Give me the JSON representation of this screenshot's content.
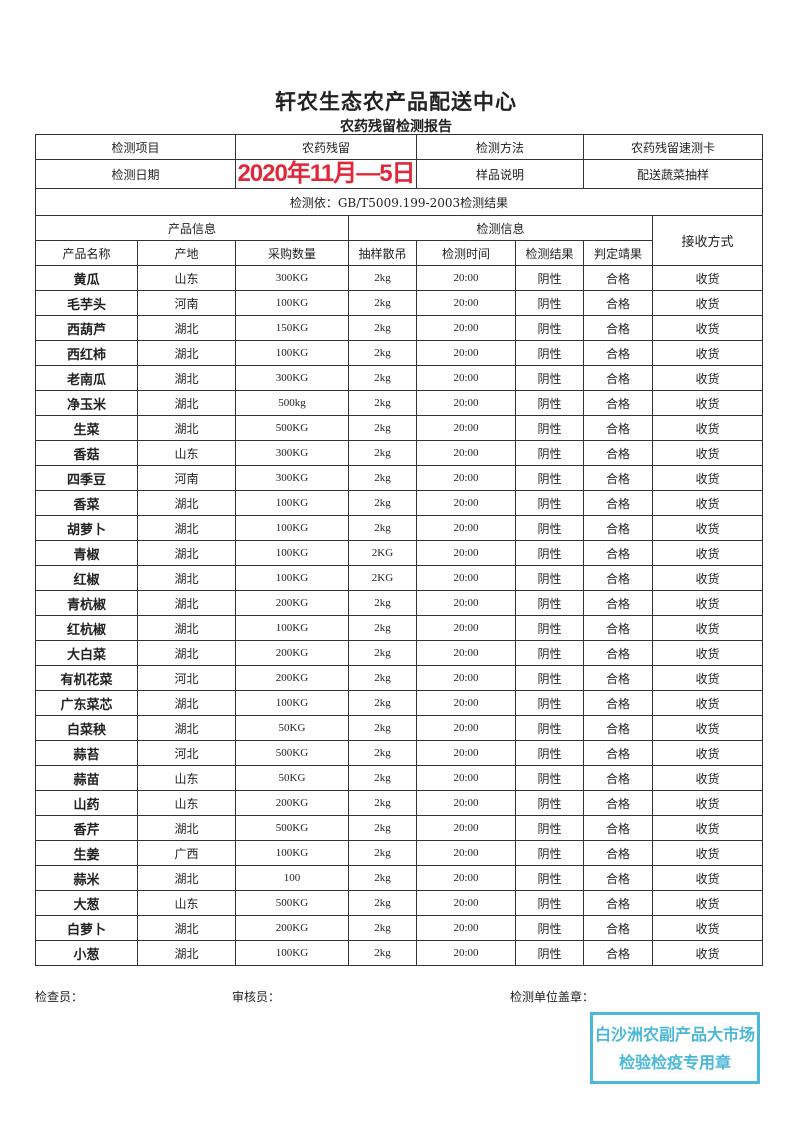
{
  "header": {
    "title": "轩农生态农产品配送中心",
    "subtitle": "农药残留检测报告"
  },
  "info": {
    "item_label": "检测项目",
    "item_value": "农药残留",
    "method_label": "检测方法",
    "method_value": "农药残留速测卡",
    "date_label": "检测日期",
    "date_value": "2020年11月—5日",
    "sample_label": "样品说明",
    "sample_value": "配送蔬菜抽样",
    "basis": "检测依：GB/T5009.199-2003检测结果"
  },
  "groups": {
    "product": "产品信息",
    "test": "检测信息",
    "receive": "接收方式"
  },
  "columns": [
    "产品名称",
    "产地",
    "采购数量",
    "抽样散吊",
    "检测时间",
    "检测结果",
    "判定靖果"
  ],
  "rows": [
    [
      "黄瓜",
      "山东",
      "300KG",
      "2kg",
      "20:00",
      "阴性",
      "合格",
      "收货"
    ],
    [
      "毛芋头",
      "河南",
      "100KG",
      "2kg",
      "20:00",
      "阴性",
      "合格",
      "收货"
    ],
    [
      "西葫芦",
      "湖北",
      "150KG",
      "2kg",
      "20:00",
      "阴性",
      "合格",
      "收货"
    ],
    [
      "西红柿",
      "湖北",
      "100KG",
      "2kg",
      "20:00",
      "阴性",
      "合格",
      "收货"
    ],
    [
      "老南瓜",
      "湖北",
      "300KG",
      "2kg",
      "20:00",
      "阴性",
      "合格",
      "收货"
    ],
    [
      "净玉米",
      "湖北",
      "500kg",
      "2kg",
      "20:00",
      "阴性",
      "合格",
      "收货"
    ],
    [
      "生菜",
      "湖北",
      "500KG",
      "2kg",
      "20:00",
      "阴性",
      "合格",
      "收货"
    ],
    [
      "香菇",
      "山东",
      "300KG",
      "2kg",
      "20:00",
      "阴性",
      "合格",
      "收货"
    ],
    [
      "四季豆",
      "河南",
      "300KG",
      "2kg",
      "20:00",
      "阴性",
      "合格",
      "收货"
    ],
    [
      "香菜",
      "湖北",
      "100KG",
      "2kg",
      "20:00",
      "阴性",
      "合格",
      "收货"
    ],
    [
      "胡萝卜",
      "湖北",
      "100KG",
      "2kg",
      "20:00",
      "阴性",
      "合格",
      "收货"
    ],
    [
      "青椒",
      "湖北",
      "100KG",
      "2KG",
      "20:00",
      "阴性",
      "合格",
      "收货"
    ],
    [
      "红椒",
      "湖北",
      "100KG",
      "2KG",
      "20:00",
      "阴性",
      "合格",
      "收货"
    ],
    [
      "青杭椒",
      "湖北",
      "200KG",
      "2kg",
      "20:00",
      "阴性",
      "合格",
      "收货"
    ],
    [
      "红杭椒",
      "湖北",
      "100KG",
      "2kg",
      "20:00",
      "阴性",
      "合格",
      "收货"
    ],
    [
      "大白菜",
      "湖北",
      "200KG",
      "2kg",
      "20:00",
      "阴性",
      "合格",
      "收货"
    ],
    [
      "有机花菜",
      "河北",
      "200KG",
      "2kg",
      "20:00",
      "阴性",
      "合格",
      "收货"
    ],
    [
      "广东菜芯",
      "湖北",
      "100KG",
      "2kg",
      "20:00",
      "阴性",
      "合格",
      "收货"
    ],
    [
      "白菜秧",
      "湖北",
      "50KG",
      "2kg",
      "20:00",
      "阴性",
      "合格",
      "收货"
    ],
    [
      "蒜苔",
      "河北",
      "500KG",
      "2kg",
      "20:00",
      "阴性",
      "合格",
      "收货"
    ],
    [
      "蒜苗",
      "山东",
      "50KG",
      "2kg",
      "20:00",
      "阴性",
      "合格",
      "收货"
    ],
    [
      "山药",
      "山东",
      "200KG",
      "2kg",
      "20:00",
      "阴性",
      "合格",
      "收货"
    ],
    [
      "香芹",
      "湖北",
      "500KG",
      "2kg",
      "20:00",
      "阴性",
      "合格",
      "收货"
    ],
    [
      "生姜",
      "广西",
      "100KG",
      "2kg",
      "20:00",
      "阴性",
      "合格",
      "收货"
    ],
    [
      "蒜米",
      "湖北",
      "100",
      "2kg",
      "20:00",
      "阴性",
      "合格",
      "收货"
    ],
    [
      "大葱",
      "山东",
      "500KG",
      "2kg",
      "20:00",
      "阴性",
      "合格",
      "收货"
    ],
    [
      "白萝卜",
      "湖北",
      "200KG",
      "2kg",
      "20:00",
      "阴性",
      "合格",
      "收货"
    ],
    [
      "小葱",
      "湖北",
      "100KG",
      "2kg",
      "20:00",
      "阴性",
      "合格",
      "收货"
    ]
  ],
  "footer": {
    "inspector": "检查员：",
    "reviewer": "审核员：",
    "seal_label": "检测单位盖章："
  },
  "stamps": {
    "seal_line1": "白沙洲农副产品大市场",
    "seal_line2": "检验检疫专用章",
    "seal_color": "#4cb8d8",
    "date_color": "#e0283a"
  }
}
